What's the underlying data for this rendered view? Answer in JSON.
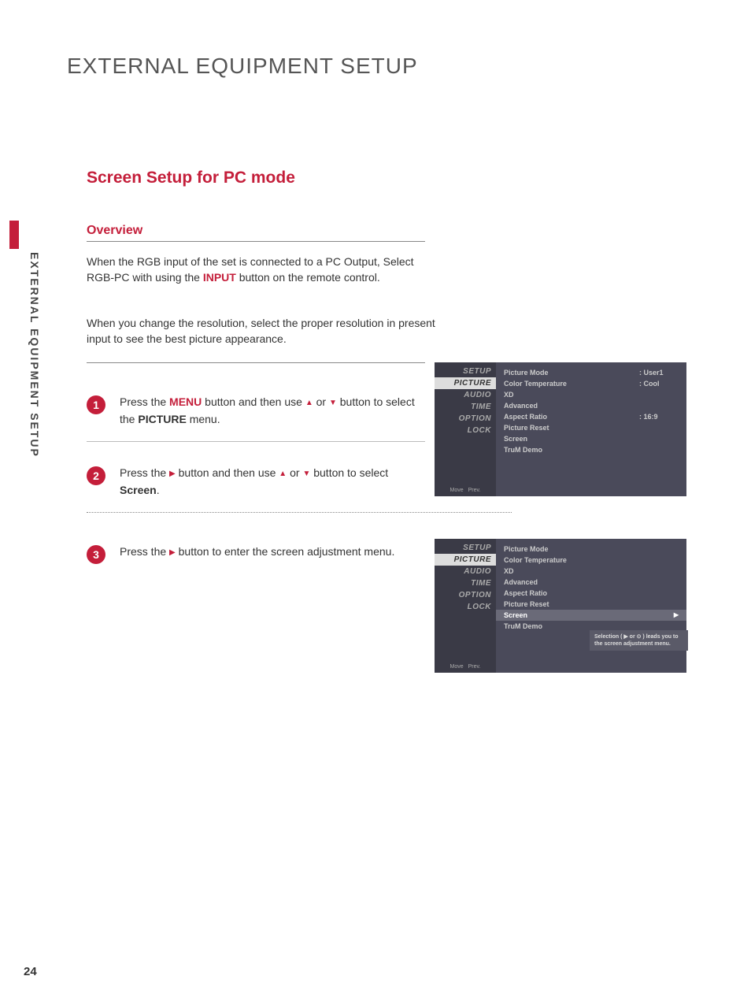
{
  "page": {
    "title": "EXTERNAL EQUIPMENT SETUP",
    "side_label": "EXTERNAL EQUIPMENT SETUP",
    "page_number": "24"
  },
  "section": {
    "title": "Screen Setup for PC mode",
    "overview_heading": "Overview",
    "para1_a": "When the RGB input of the set is connected to a PC Output, Select RGB-PC with using the ",
    "input_word": "INPUT",
    "para1_b": " button on the remote control.",
    "para2": "When you change the resolution, select the proper resolution in present input to see the best picture appearance."
  },
  "steps": {
    "s1": {
      "num": "1",
      "a": "Press the ",
      "menu": "MENU",
      "b": " button and then use ",
      "c": " or ",
      "d": " button to select the ",
      "picture": "PICTURE",
      "e": " menu."
    },
    "s2": {
      "num": "2",
      "a": "Press the ",
      "b": " button and then use ",
      "c": " or ",
      "d": " button to select ",
      "screen": "Screen",
      "e": "."
    },
    "s3": {
      "num": "3",
      "a": "Press the ",
      "b": " button to enter the screen adjustment menu."
    }
  },
  "osd": {
    "nav": {
      "setup": "SETUP",
      "picture": "PICTURE",
      "audio": "AUDIO",
      "time": "TIME",
      "option": "OPTION",
      "lock": "LOCK"
    },
    "footer_move": "Move",
    "footer_prev": "Prev.",
    "rows": {
      "picture_mode": "Picture Mode",
      "color_temp": "Color Temperature",
      "xd": "XD",
      "advanced": "Advanced",
      "aspect": "Aspect Ratio",
      "reset": "Picture Reset",
      "screen": "Screen",
      "trum": "TruM Demo"
    },
    "vals": {
      "picture_mode": ": User1",
      "color_temp": ": Cool",
      "aspect": ": 16:9"
    },
    "popup": "Selection ( ▶ or ⊙ ) leads you to the screen adjustment menu."
  },
  "colors": {
    "accent": "#c41e3a",
    "osd_bg": "#4a4a5a",
    "osd_left_bg": "#3a3a46",
    "osd_sel": "#6a6a78"
  }
}
